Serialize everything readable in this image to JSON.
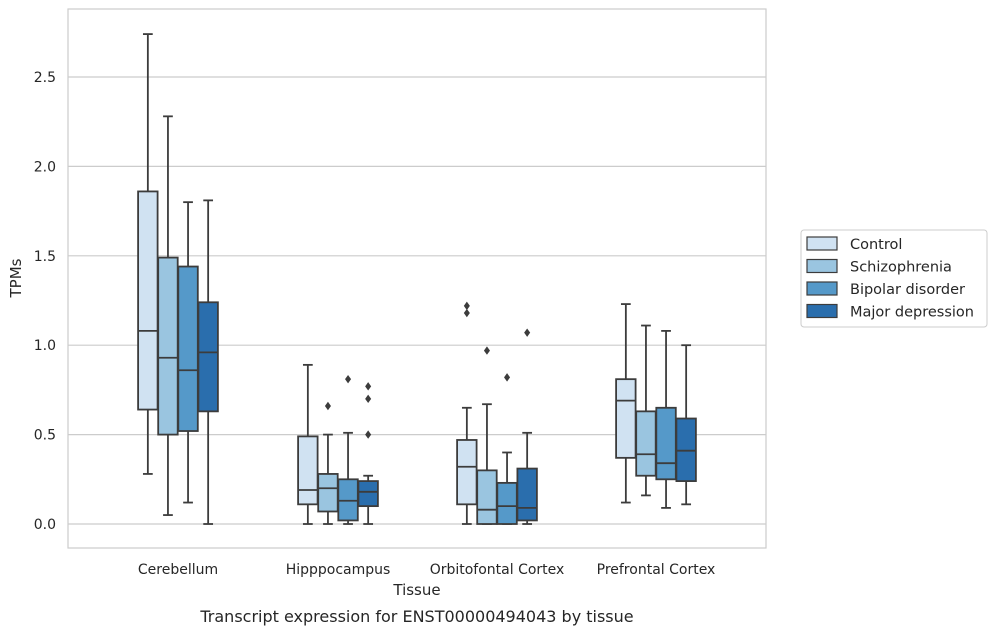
{
  "chart_data": {
    "type": "box",
    "title": "",
    "caption": "Transcript expression for ENST00000494043 by tissue",
    "xlabel": "Tissue",
    "ylabel": "TPMs",
    "ylim": [
      -0.13,
      2.87
    ],
    "yticks": [
      "0.0",
      "0.5",
      "1.0",
      "1.5",
      "2.0",
      "2.5"
    ],
    "ytick_values": [
      0.0,
      0.5,
      1.0,
      1.5,
      2.0,
      2.5
    ],
    "grid": "horizontal",
    "legend_position": "right",
    "categories": [
      "Cerebellum",
      "Hipppocampus",
      "Orbitofontal Cortex",
      "Prefrontal Cortex"
    ],
    "series": [
      {
        "name": "Control",
        "color": "#d0e2f2",
        "boxes": [
          {
            "whislo": 0.28,
            "q1": 0.64,
            "med": 1.08,
            "q3": 1.86,
            "whishi": 2.74,
            "fliers": []
          },
          {
            "whislo": 0.0,
            "q1": 0.11,
            "med": 0.19,
            "q3": 0.49,
            "whishi": 0.89,
            "fliers": []
          },
          {
            "whislo": 0.0,
            "q1": 0.11,
            "med": 0.32,
            "q3": 0.47,
            "whishi": 0.65,
            "fliers": [
              1.18,
              1.22
            ]
          },
          {
            "whislo": 0.12,
            "q1": 0.37,
            "med": 0.69,
            "q3": 0.81,
            "whishi": 1.23,
            "fliers": []
          }
        ]
      },
      {
        "name": "Schizophrenia",
        "color": "#9ac5e0",
        "boxes": [
          {
            "whislo": 0.05,
            "q1": 0.5,
            "med": 0.93,
            "q3": 1.49,
            "whishi": 2.28,
            "fliers": []
          },
          {
            "whislo": 0.0,
            "q1": 0.07,
            "med": 0.2,
            "q3": 0.28,
            "whishi": 0.5,
            "fliers": [
              0.66
            ]
          },
          {
            "whislo": 0.0,
            "q1": 0.0,
            "med": 0.08,
            "q3": 0.3,
            "whishi": 0.67,
            "fliers": [
              0.97
            ]
          },
          {
            "whislo": 0.16,
            "q1": 0.27,
            "med": 0.39,
            "q3": 0.63,
            "whishi": 1.11,
            "fliers": []
          }
        ]
      },
      {
        "name": "Bipolar disorder",
        "color": "#5599c9",
        "boxes": [
          {
            "whislo": 0.12,
            "q1": 0.52,
            "med": 0.86,
            "q3": 1.44,
            "whishi": 1.8,
            "fliers": []
          },
          {
            "whislo": 0.0,
            "q1": 0.02,
            "med": 0.13,
            "q3": 0.25,
            "whishi": 0.51,
            "fliers": [
              0.81
            ]
          },
          {
            "whislo": 0.0,
            "q1": 0.0,
            "med": 0.1,
            "q3": 0.23,
            "whishi": 0.4,
            "fliers": [
              0.82
            ]
          },
          {
            "whislo": 0.09,
            "q1": 0.25,
            "med": 0.34,
            "q3": 0.65,
            "whishi": 1.08,
            "fliers": []
          }
        ]
      },
      {
        "name": "Major depression",
        "color": "#2a6ead",
        "boxes": [
          {
            "whislo": 0.0,
            "q1": 0.63,
            "med": 0.96,
            "q3": 1.24,
            "whishi": 1.81,
            "fliers": []
          },
          {
            "whislo": 0.0,
            "q1": 0.1,
            "med": 0.18,
            "q3": 0.24,
            "whishi": 0.27,
            "fliers": [
              0.5,
              0.7,
              0.77
            ]
          },
          {
            "whislo": 0.0,
            "q1": 0.02,
            "med": 0.09,
            "q3": 0.31,
            "whishi": 0.51,
            "fliers": [
              1.07
            ]
          },
          {
            "whislo": 0.11,
            "q1": 0.24,
            "med": 0.41,
            "q3": 0.59,
            "whishi": 1.0,
            "fliers": []
          }
        ]
      }
    ]
  }
}
